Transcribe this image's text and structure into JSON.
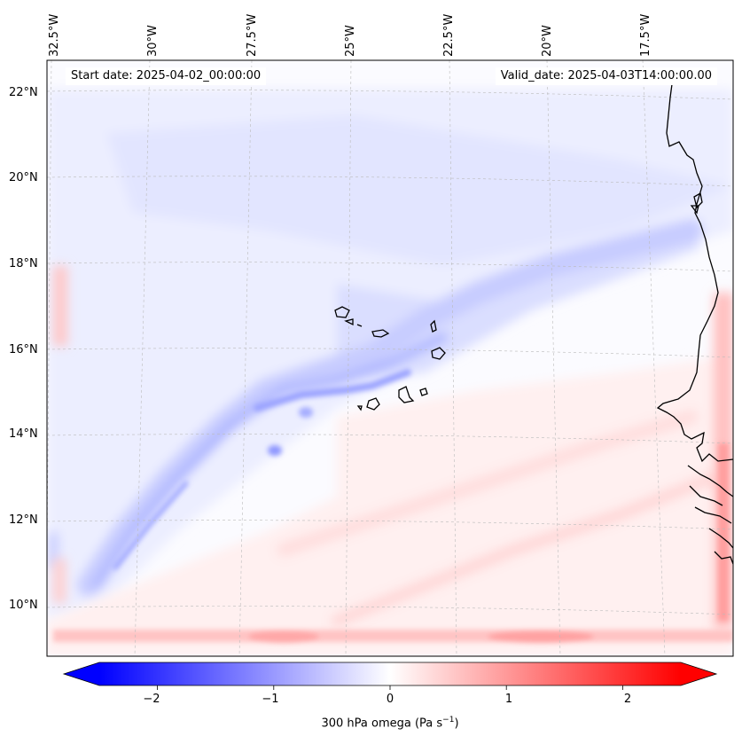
{
  "map": {
    "start_label": "Start date: 2025-04-02_00:00:00",
    "valid_label": "Valid_date: 2025-04-03T14:00:00.00",
    "lon_labels": [
      "32.5°W",
      "30°W",
      "27.5°W",
      "25°W",
      "22.5°W",
      "20°W",
      "17.5°W"
    ],
    "lat_labels": [
      "22°N",
      "20°N",
      "18°N",
      "16°N",
      "14°N",
      "12°N",
      "10°N"
    ],
    "extent": {
      "lon": [
        -32.6,
        -15.5
      ],
      "lat": [
        8.9,
        22.7
      ]
    },
    "field": "300 hPa omega",
    "coastline_color": "#000000",
    "grid_color": "#bbbbbb"
  },
  "colorbar": {
    "label": "300 hPa omega (Pa s",
    "label_sup": "−1",
    "label_close": ")",
    "ticks": [
      "−2",
      "−1",
      "0",
      "1",
      "2"
    ],
    "tick_values": [
      -2,
      -1,
      0,
      1,
      2
    ],
    "range": [
      -2.5,
      2.5
    ],
    "cmap": "bwr",
    "colors": {
      "negative": "#0000ff",
      "zero": "#ffffff",
      "positive": "#ff0000"
    }
  }
}
